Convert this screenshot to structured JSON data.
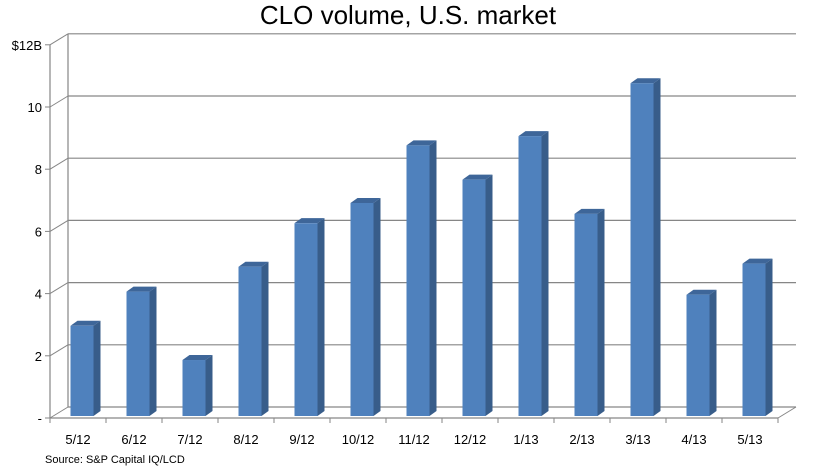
{
  "chart_data": {
    "type": "bar",
    "title": "CLO volume, U.S. market",
    "xlabel": "",
    "ylabel": "",
    "categories": [
      "5/12",
      "6/12",
      "7/12",
      "8/12",
      "9/12",
      "10/12",
      "11/12",
      "12/12",
      "1/13",
      "2/13",
      "3/13",
      "4/13",
      "5/13"
    ],
    "values": [
      2.9,
      4.0,
      1.8,
      4.8,
      6.2,
      6.85,
      8.7,
      7.6,
      9.0,
      6.5,
      10.7,
      3.9,
      4.9
    ],
    "ylim": [
      0,
      12
    ],
    "yticks": [
      0,
      2,
      4,
      6,
      8,
      10,
      12
    ],
    "ytick_labels": [
      "-",
      "2",
      "4",
      "6",
      "8",
      "10",
      "$12B"
    ],
    "grid": true,
    "style": "3d-column",
    "colors": {
      "front": "#4F81BD",
      "side": "#385D8A",
      "top": "#3E6699",
      "grid": "#868686"
    },
    "source": "Source: S&P Capital IQ/LCD"
  }
}
